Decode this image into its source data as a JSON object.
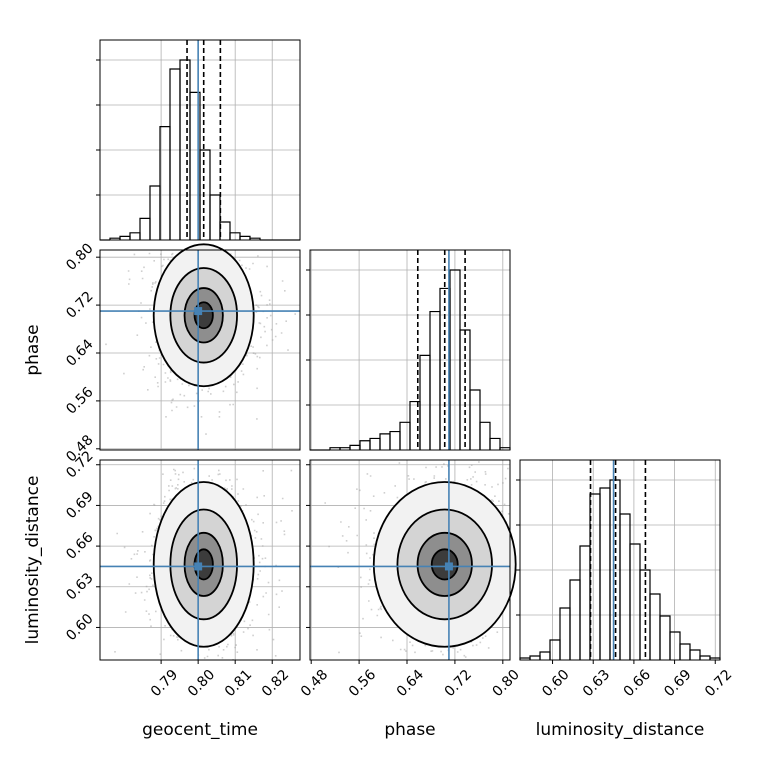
{
  "chart_data": {
    "type": "corner",
    "parameters": [
      "geocent_time",
      "phase",
      "luminosity_distance"
    ],
    "truths": {
      "geocent_time": 0.8,
      "phase": 0.71,
      "luminosity_distance": 0.645
    },
    "quantiles": {
      "geocent_time": [
        0.797,
        0.8015,
        0.806
      ],
      "phase": [
        0.658,
        0.703,
        0.737
      ],
      "luminosity_distance": [
        0.628,
        0.6465,
        0.6685
      ]
    },
    "ranges": {
      "geocent_time": [
        0.7735,
        0.8275
      ],
      "phase": [
        0.478,
        0.812
      ],
      "luminosity_distance": [
        0.576,
        0.7235
      ]
    },
    "ticks": {
      "geocent_time": [
        0.79,
        0.8,
        0.81,
        0.82
      ],
      "phase": [
        0.48,
        0.56,
        0.64,
        0.72,
        0.8
      ],
      "luminosity_distance": [
        0.6,
        0.63,
        0.66,
        0.69,
        0.72
      ]
    },
    "tick_labels": {
      "geocent_time": [
        "0.79",
        "0.80",
        "0.81",
        "0.82"
      ],
      "phase": [
        "0.48",
        "0.56",
        "0.64",
        "0.72",
        "0.80"
      ],
      "luminosity_distance": [
        "0.60",
        "0.63",
        "0.66",
        "0.69",
        "0.72"
      ]
    },
    "histograms": {
      "geocent_time": [
        0,
        1,
        2,
        4,
        12,
        30,
        63,
        95,
        100,
        82,
        50,
        25,
        10,
        4,
        2,
        1,
        0,
        0,
        0,
        0
      ],
      "phase": [
        0,
        0,
        1,
        1,
        2,
        4,
        5,
        7,
        8,
        12,
        21,
        41,
        60,
        70,
        78,
        52,
        26,
        12,
        5,
        1
      ],
      "luminosity_distance": [
        1,
        2,
        4,
        10,
        26,
        40,
        57,
        83,
        86,
        90,
        73,
        58,
        45,
        33,
        22,
        14,
        8,
        5,
        2,
        1
      ]
    },
    "grid": true
  },
  "labels": {
    "x0": "geocent_time",
    "x1": "phase",
    "x2": "luminosity_distance",
    "y1": "phase",
    "y2": "luminosity_distance"
  }
}
